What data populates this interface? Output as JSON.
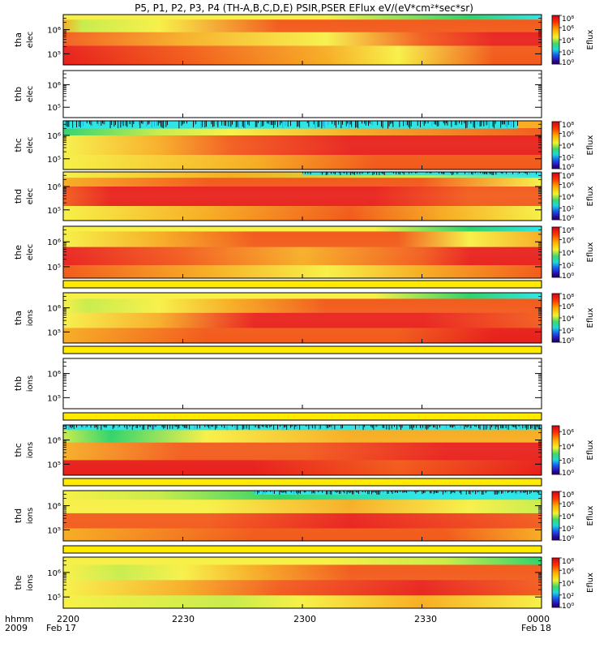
{
  "title": "P5, P1, P2, P3, P4 (TH-A,B,C,D,E) PSIR,PSER EFlux eV/(eV*cm²*sec*sr)",
  "colorbar": {
    "label": "Eflux",
    "ticks_full": [
      "10⁸",
      "10⁶",
      "10⁴",
      "10²",
      "10⁰"
    ],
    "ticks_short": [
      "10⁶",
      "10⁴",
      "10²",
      "10⁰"
    ]
  },
  "colors": {
    "red": "#e8201a",
    "orange": "#f25a1a",
    "yellow_orange": "#f7ad23",
    "yellow": "#f7f046",
    "light_green": "#c8ec4a",
    "green": "#2fd36a",
    "cyan": "#2fe6e6",
    "blue_band": "#1aa6e8",
    "spacer_yellow": "#ffea00"
  },
  "x_axis": {
    "ticks": [
      "2200",
      "2230",
      "2300",
      "2330",
      "0000"
    ],
    "dates": [
      "Feb 17",
      "Feb 18"
    ],
    "left_labels": [
      "hhmm",
      "2009"
    ]
  },
  "chart_data": {
    "type": "heatmap",
    "quantity": "EFlux",
    "units": "eV/(eV*cm²*sec*sr)",
    "x_range": [
      "2009-02-17 22:00",
      "2009-02-18 00:00"
    ],
    "y_scale": "log",
    "y_ticks": [
      "10⁶",
      "10⁵"
    ],
    "panels": [
      {
        "probe": "tha",
        "species": "elec",
        "has_data": true,
        "colorbar": "full",
        "profile": "tha_elec"
      },
      {
        "probe": "thb",
        "species": "elec",
        "has_data": false,
        "colorbar": "none"
      },
      {
        "probe": "thc",
        "species": "elec",
        "has_data": true,
        "colorbar": "full",
        "profile": "thc_elec"
      },
      {
        "probe": "thd",
        "species": "elec",
        "has_data": true,
        "colorbar": "full",
        "profile": "thd_elec"
      },
      {
        "probe": "the",
        "species": "elec",
        "has_data": true,
        "colorbar": "full",
        "profile": "the_elec"
      },
      {
        "probe": "tha",
        "species": "ions",
        "has_data": true,
        "colorbar": "full",
        "profile": "tha_ions"
      },
      {
        "probe": "thb",
        "species": "ions",
        "has_data": false,
        "colorbar": "none"
      },
      {
        "probe": "thc",
        "species": "ions",
        "has_data": true,
        "colorbar": "short",
        "profile": "thc_ions"
      },
      {
        "probe": "thd",
        "species": "ions",
        "has_data": true,
        "colorbar": "full",
        "profile": "thd_ions"
      },
      {
        "probe": "the",
        "species": "ions",
        "has_data": true,
        "colorbar": "full",
        "profile": "the_ions"
      }
    ]
  }
}
